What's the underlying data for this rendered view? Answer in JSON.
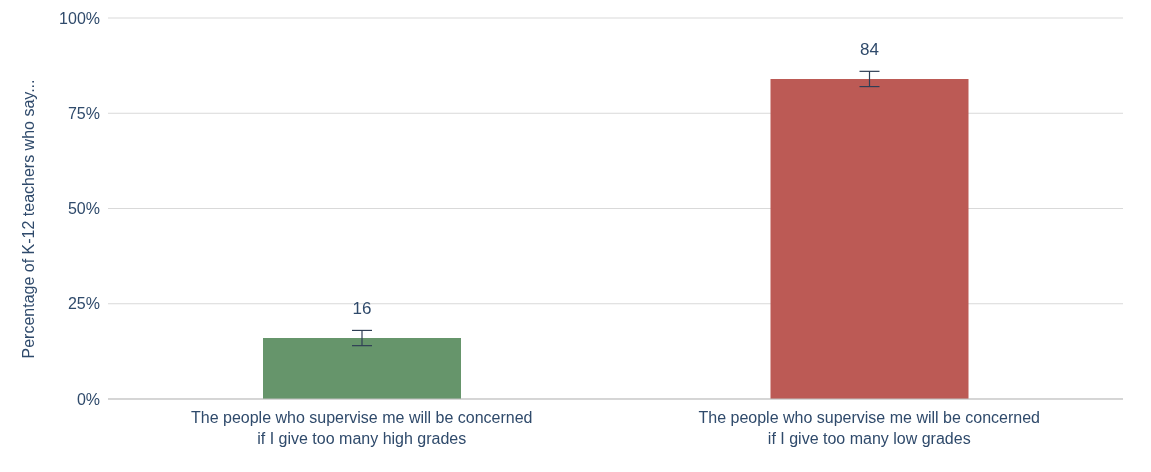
{
  "chart_data": {
    "type": "bar",
    "ylabel": "Percentage of K-12 teachers who say...",
    "categories": [
      "The people who supervise me will be concerned if I give too many high grades",
      "The people who supervise me will be concerned if I give too many low grades"
    ],
    "values": [
      16,
      84
    ],
    "colors": [
      "#66956b",
      "#bc5a55"
    ],
    "errors": [
      2,
      2
    ],
    "data_labels": true,
    "ylim": [
      0,
      100
    ],
    "yticks": [
      {
        "value": 0,
        "label": "0%"
      },
      {
        "value": 25,
        "label": "25%"
      },
      {
        "value": 50,
        "label": "50%"
      },
      {
        "value": 75,
        "label": "75%"
      },
      {
        "value": 100,
        "label": "100%"
      }
    ],
    "grid": "y"
  }
}
